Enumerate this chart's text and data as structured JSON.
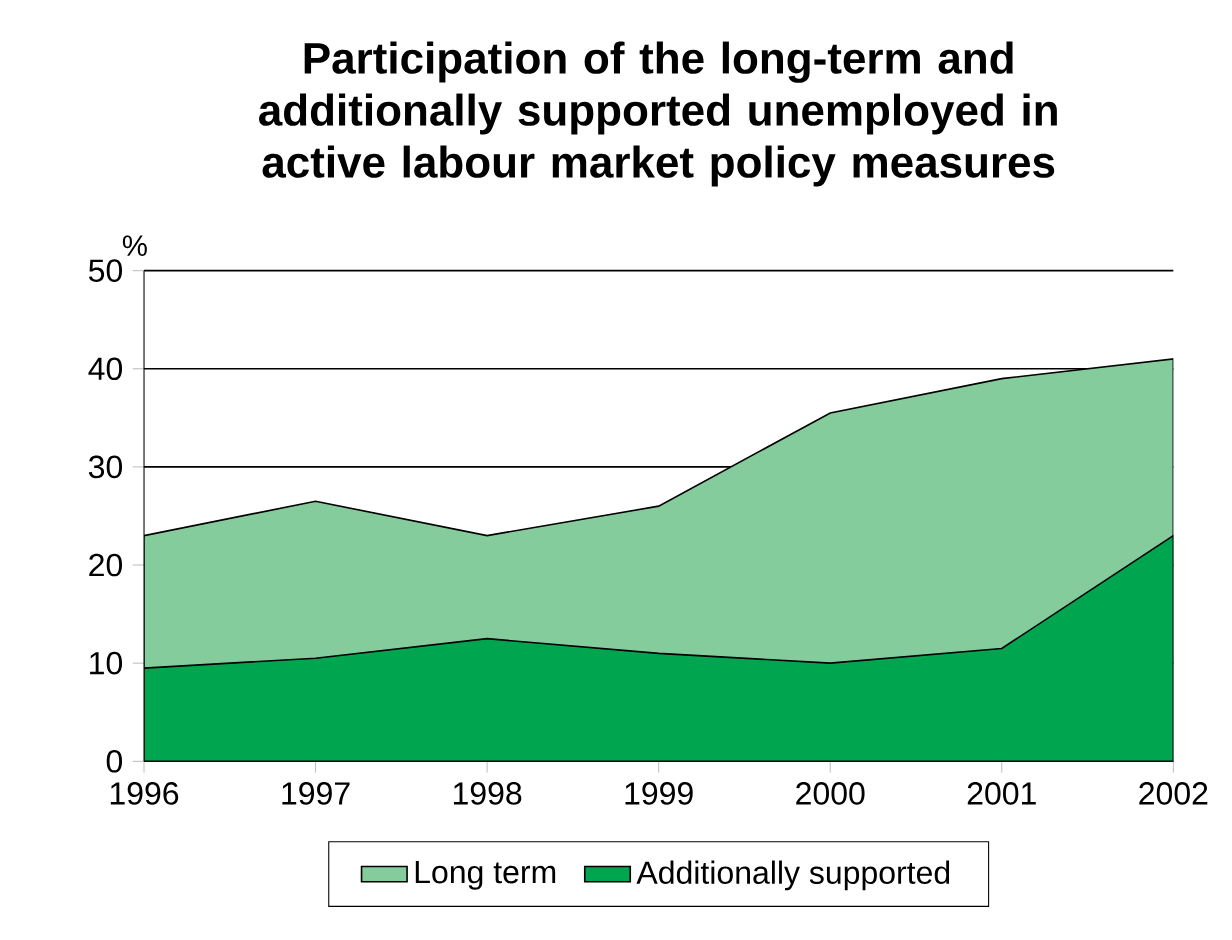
{
  "chart_data": {
    "type": "area",
    "title": "Participation of the long-term and additionally supported unemployed in active labour market policy measures",
    "ylabel": "%",
    "x": [
      1996,
      1997,
      1998,
      1999,
      2000,
      2001,
      2002
    ],
    "series": [
      {
        "name": "Long term",
        "color": "#84cc9c",
        "values": [
          23,
          26.5,
          23,
          26,
          35.5,
          39,
          41
        ]
      },
      {
        "name": "Additionally supported",
        "color": "#00a550",
        "values": [
          9.5,
          10.5,
          12.5,
          11,
          10,
          11.5,
          23
        ]
      }
    ],
    "xlim": [
      1996,
      2002
    ],
    "ylim": [
      0,
      50
    ],
    "xticks": [
      1996,
      1997,
      1998,
      1999,
      2000,
      2001,
      2002
    ],
    "yticks": [
      0,
      10,
      20,
      30,
      40,
      50
    ],
    "grid": "y",
    "legend": "bottom"
  }
}
